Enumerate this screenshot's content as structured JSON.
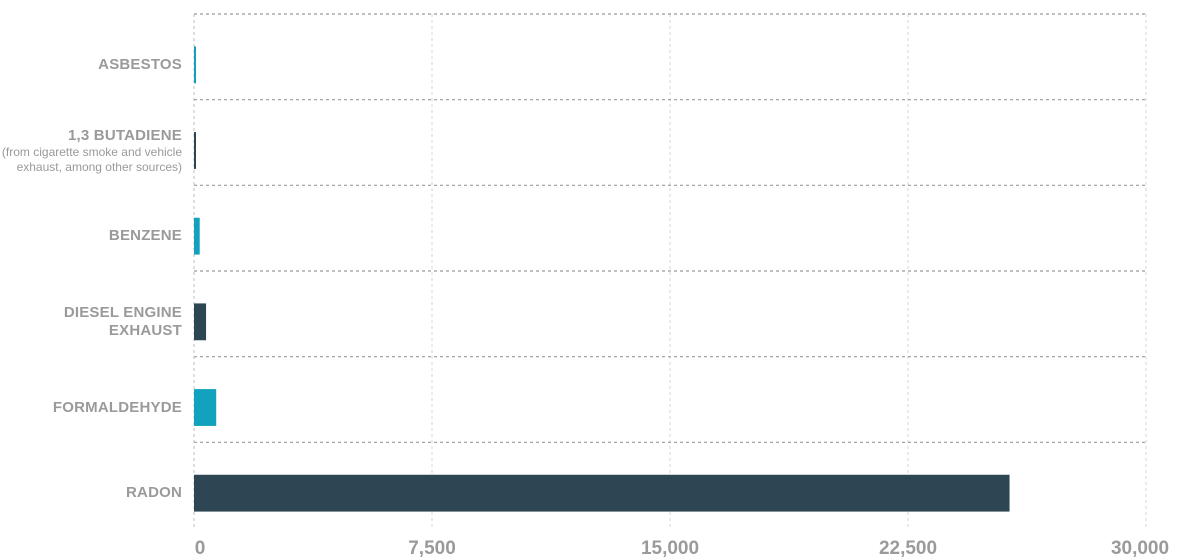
{
  "chart_data": {
    "type": "bar",
    "orientation": "horizontal",
    "categories": [
      {
        "label": "ASBESTOS",
        "note": ""
      },
      {
        "label": "1,3 BUTADIENE",
        "note": "(from cigarette smoke and vehicle exhaust, among other sources)"
      },
      {
        "label": "BENZENE",
        "note": ""
      },
      {
        "label": "DIESEL ENGINE EXHAUST",
        "note": ""
      },
      {
        "label": "FORMALDEHYDE",
        "note": ""
      },
      {
        "label": "RADON",
        "note": ""
      }
    ],
    "values": [
      60,
      40,
      180,
      380,
      700,
      25700
    ],
    "bar_colors": [
      "#12a2bd",
      "#2e4654",
      "#12a2bd",
      "#2e4654",
      "#12a2bd",
      "#2e4654"
    ],
    "xlim": [
      0,
      30000
    ],
    "xticks": [
      "0",
      "7,500",
      "15,000",
      "22,500",
      "30,000"
    ],
    "title": "",
    "xlabel": "",
    "ylabel": "",
    "grid": true,
    "legend": "none"
  },
  "colors": {
    "teal": "#12a2bd",
    "slate": "#2e4654",
    "label_gray": "#9a9a9a",
    "grid": "#9a9a9a"
  }
}
